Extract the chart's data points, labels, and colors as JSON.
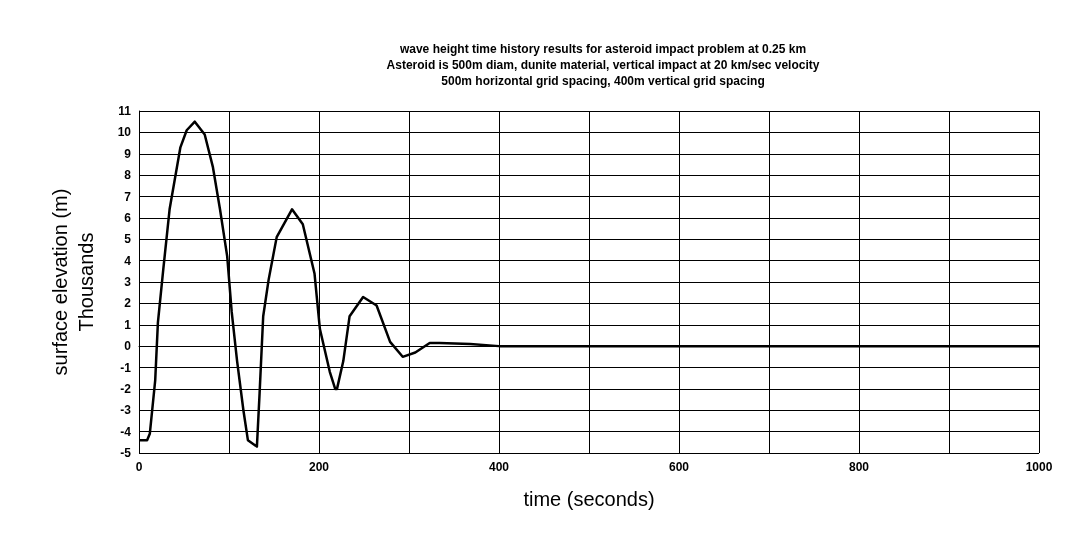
{
  "chart_data": {
    "type": "line",
    "title": "wave height time history results for asteroid impact problem at 0.25 km\nAsteroid is 500m diam, dunite material, vertical impact at 20 km/sec velocity\n500m horizontal grid spacing, 400m vertical grid spacing",
    "xlabel": "time (seconds)",
    "ylabel": "surface elevation (m)\nThousands",
    "xlim": [
      0,
      1000
    ],
    "xticks": [
      0,
      {
        "value": 100,
        "label": null
      },
      200,
      {
        "value": 300,
        "label": null
      },
      400,
      {
        "value": 500,
        "label": null
      },
      600,
      {
        "value": 700,
        "label": null
      },
      800,
      {
        "value": 900,
        "label": null
      },
      1000
    ],
    "ylim": [
      -5,
      11
    ],
    "yticks": [
      -5,
      -4,
      -3,
      -2,
      -1,
      0,
      1,
      2,
      3,
      4,
      5,
      6,
      7,
      8,
      9,
      10,
      11
    ],
    "grid": true,
    "marker": "none",
    "line_style": "solid",
    "series": [
      {
        "color": "#000000",
        "x": [
          0,
          9,
          12,
          18,
          21,
          27,
          34,
          46,
          53,
          62,
          73,
          82,
          90,
          98,
          103,
          109,
          116,
          121,
          131,
          134,
          138,
          144,
          153,
          170,
          182,
          195,
          201,
          212,
          218,
          220,
          227,
          234,
          249,
          264,
          279,
          293,
          307,
          323,
          334,
          368,
          400,
          600,
          800,
          1000
        ],
        "values": [
          -4.4,
          -4.4,
          -4.1,
          -1.6,
          1.1,
          3.6,
          6.4,
          9.3,
          10.1,
          10.5,
          9.9,
          8.4,
          6.4,
          4.2,
          1.6,
          -0.7,
          -3.0,
          -4.4,
          -4.7,
          -2.2,
          1.4,
          3.1,
          5.1,
          6.4,
          5.7,
          3.4,
          0.8,
          -1.2,
          -2.0,
          -2.0,
          -0.7,
          1.4,
          2.3,
          1.9,
          0.2,
          -0.5,
          -0.3,
          0.15,
          0.15,
          0.1,
          0,
          0,
          0,
          0
        ]
      }
    ]
  }
}
